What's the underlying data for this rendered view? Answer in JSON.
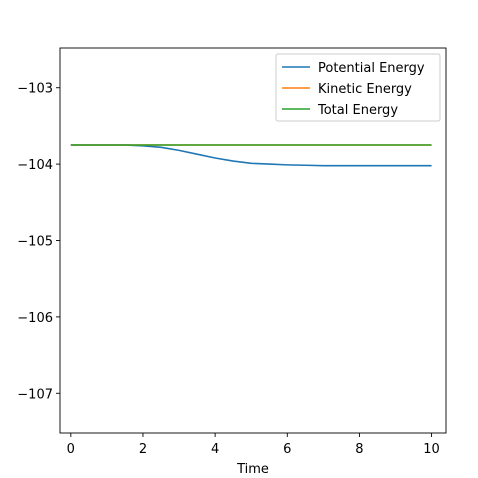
{
  "chart_data": {
    "type": "line",
    "title": "",
    "xlabel": "Time",
    "ylabel": "",
    "xlim": [
      -0.3,
      10.4
    ],
    "ylim": [
      -107.52,
      -102.48
    ],
    "xticks": [
      0,
      2,
      4,
      6,
      8,
      10
    ],
    "xtick_labels": [
      "0",
      "2",
      "4",
      "6",
      "8",
      "10"
    ],
    "yticks": [
      -103,
      -104,
      -105,
      -106,
      -107
    ],
    "ytick_labels": [
      "−103",
      "−104",
      "−105",
      "−106",
      "−107"
    ],
    "grid": false,
    "legend_position": "top-right",
    "x": [
      0,
      0.5,
      1,
      1.5,
      2,
      2.5,
      3,
      3.5,
      4,
      4.5,
      5,
      5.5,
      6,
      6.5,
      7,
      7.5,
      8,
      8.5,
      9,
      9.5,
      10
    ],
    "series": [
      {
        "name": "Potential Energy",
        "color": "#1f77b4",
        "values": [
          -103.75,
          -103.75,
          -103.75,
          -103.75,
          -103.76,
          -103.78,
          -103.82,
          -103.87,
          -103.92,
          -103.96,
          -103.99,
          -104.0,
          -104.01,
          -104.015,
          -104.02,
          -104.02,
          -104.02,
          -104.02,
          -104.02,
          -104.02,
          -104.02
        ]
      },
      {
        "name": "Kinetic Energy",
        "color": "#ff7f0e",
        "values": [
          -103.75,
          -103.75,
          -103.75,
          -103.75,
          -103.75,
          -103.75,
          -103.75,
          -103.75,
          -103.75,
          -103.75,
          -103.75,
          -103.75,
          -103.75,
          -103.75,
          -103.75,
          -103.75,
          -103.75,
          -103.75,
          -103.75,
          -103.75,
          -103.75
        ]
      },
      {
        "name": "Total Energy",
        "color": "#2ca02c",
        "values": [
          -103.75,
          -103.75,
          -103.75,
          -103.75,
          -103.75,
          -103.75,
          -103.75,
          -103.75,
          -103.75,
          -103.75,
          -103.75,
          -103.75,
          -103.75,
          -103.75,
          -103.75,
          -103.75,
          -103.75,
          -103.75,
          -103.75,
          -103.75,
          -103.75
        ]
      }
    ]
  }
}
